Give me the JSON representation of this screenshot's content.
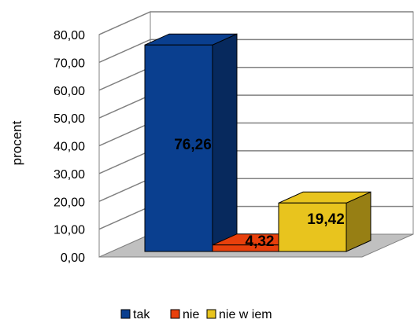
{
  "chart_data": {
    "type": "bar",
    "three_d": true,
    "categories": [
      "tak",
      "nie",
      "nie w iem"
    ],
    "values": [
      76.26,
      4.32,
      19.42
    ],
    "value_labels": [
      "76,26",
      "4,32",
      "19,42"
    ],
    "colors": [
      "#0A3F8F",
      "#E8400C",
      "#E8C41E"
    ],
    "ylabel": "procent",
    "ylim": [
      0,
      80
    ],
    "yticks": [
      "0,00",
      "10,00",
      "20,00",
      "30,00",
      "40,00",
      "50,00",
      "60,00",
      "70,00",
      "80,00"
    ],
    "grid": true,
    "legend": {
      "position": "bottom",
      "entries": [
        "tak",
        "nie",
        "nie w iem"
      ]
    }
  }
}
